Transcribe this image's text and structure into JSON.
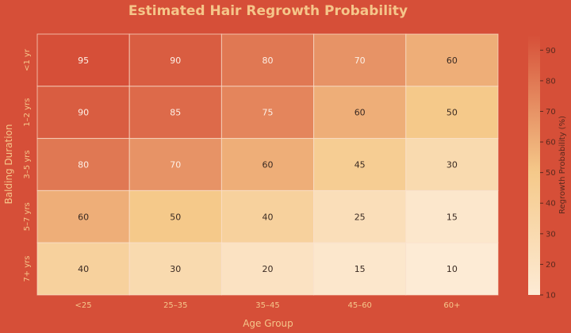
{
  "chart_data": {
    "type": "heatmap",
    "title": "Estimated Hair Regrowth Probability",
    "xlabel": "Age Group",
    "ylabel": "Balding Duration",
    "x_categories": [
      "<25",
      "25–35",
      "35–45",
      "45–60",
      "60+"
    ],
    "y_categories": [
      "<1 yr",
      "1–2 yrs",
      "3–5 yrs",
      "5–7 yrs",
      "7+ yrs"
    ],
    "values": [
      [
        95,
        90,
        80,
        70,
        60
      ],
      [
        90,
        85,
        75,
        60,
        50
      ],
      [
        80,
        70,
        60,
        45,
        30
      ],
      [
        60,
        50,
        40,
        25,
        15
      ],
      [
        40,
        30,
        20,
        15,
        10
      ]
    ],
    "colorbar": {
      "label": "Regrowth Probability (%)",
      "range": [
        10,
        95
      ],
      "ticks": [
        10,
        20,
        30,
        40,
        50,
        60,
        70,
        80,
        90
      ]
    },
    "colors": {
      "background": "#d64f38",
      "title": "#f5c68a",
      "low": "#fdebd5",
      "mid": "#f5c98a",
      "high": "#d64f38"
    }
  }
}
